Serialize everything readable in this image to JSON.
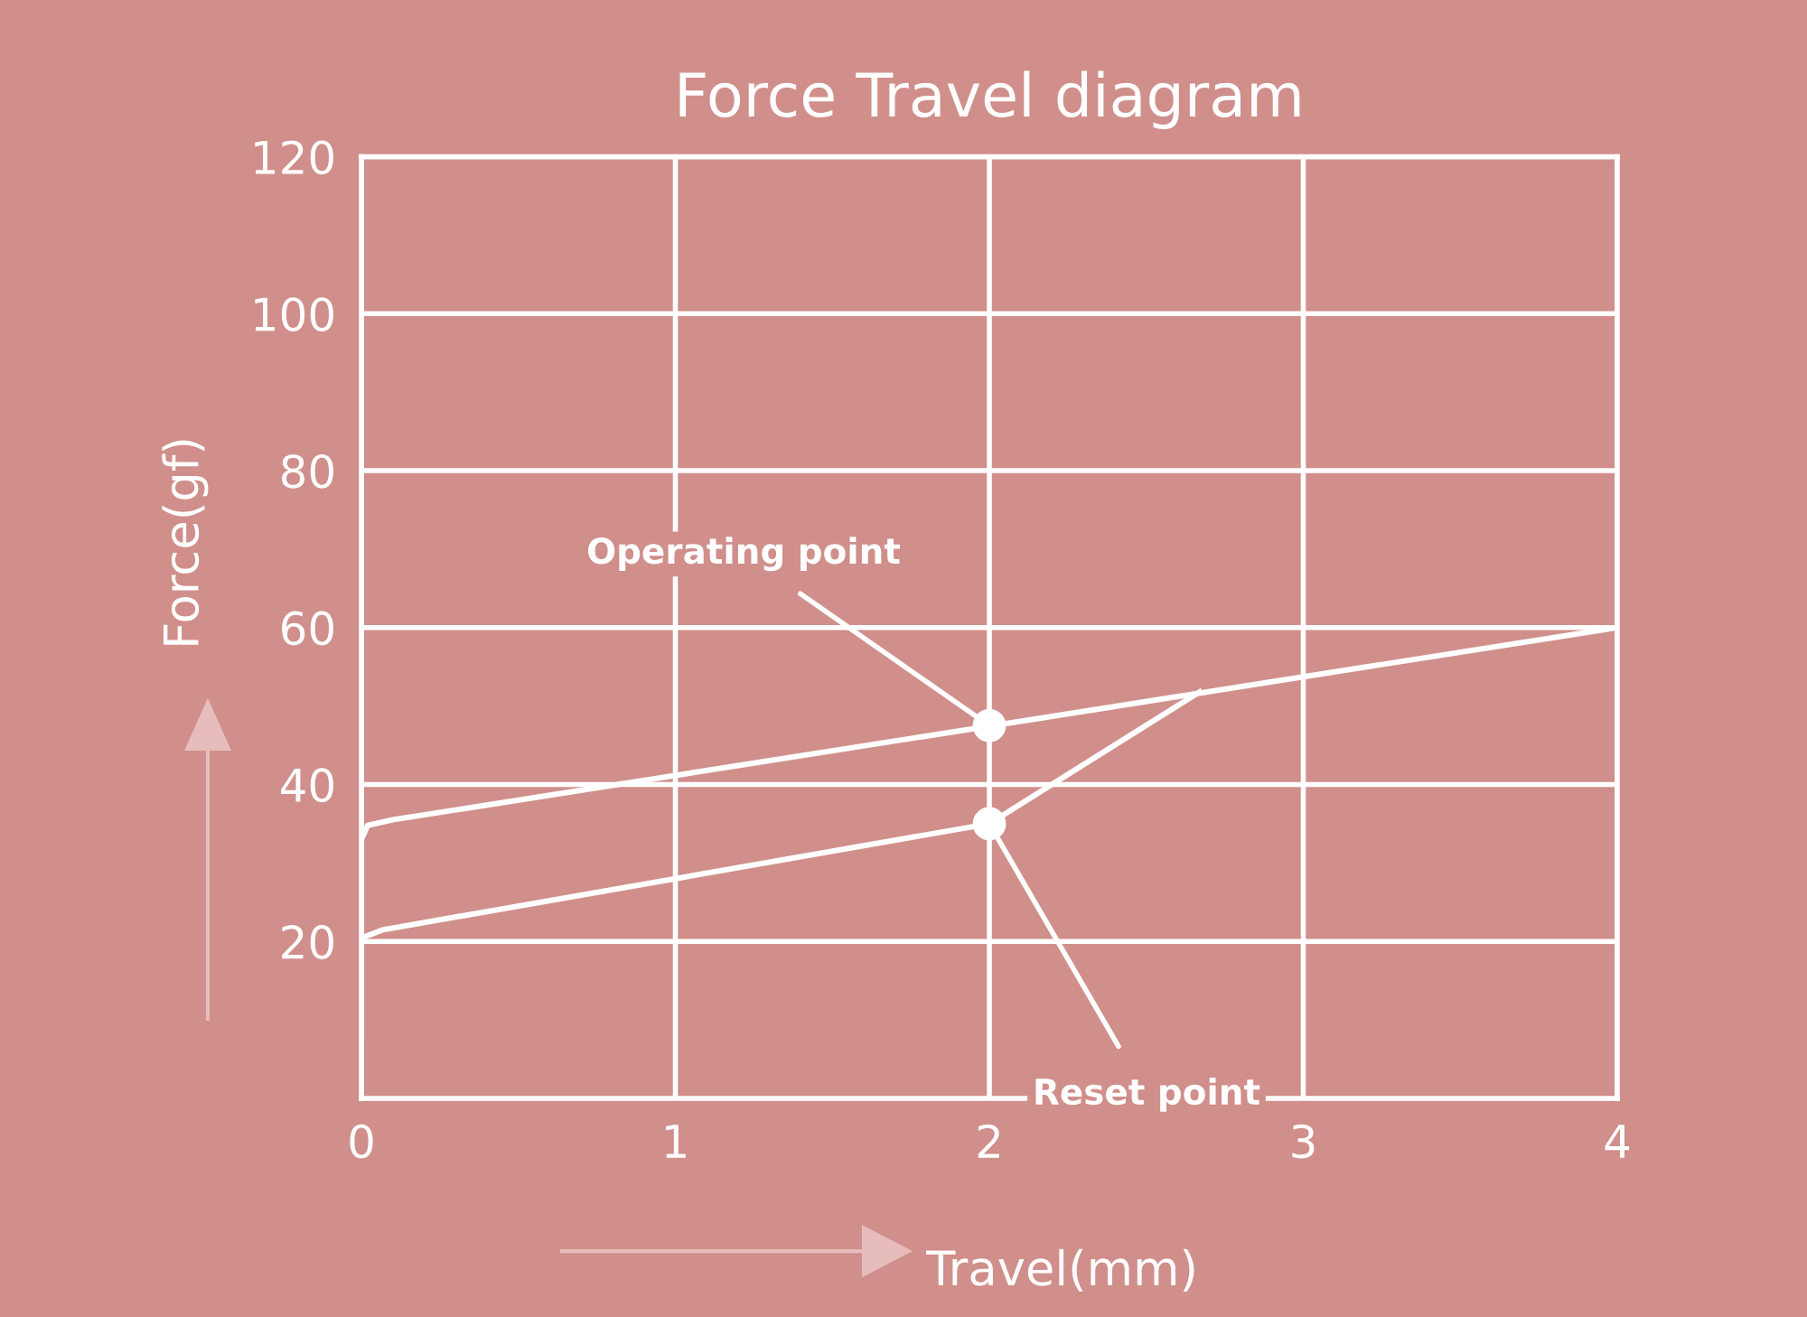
{
  "chart_data": {
    "type": "line",
    "title": "Force Travel diagram",
    "xlabel": "Travel(mm)",
    "ylabel": "Force(gf)",
    "xlim": [
      0,
      4
    ],
    "xticks": [
      0,
      1,
      2,
      3,
      4
    ],
    "ylim": [
      0,
      120
    ],
    "yticks": [
      20,
      40,
      60,
      80,
      100,
      120
    ],
    "grid": true,
    "series": [
      {
        "color": "#ffffff",
        "x": [
          0,
          0,
          0.02,
          0.1,
          4
        ],
        "values": [
          8,
          33,
          34.8,
          35.5,
          60
        ]
      },
      {
        "color": "#ffffff",
        "x": [
          2.67,
          2,
          0.07,
          0.01,
          0
        ],
        "values": [
          51.8,
          35,
          21.5,
          20.6,
          20
        ]
      },
      {
        "type": "scatter",
        "color": "#ffffff",
        "marker": "circle",
        "x": [
          2,
          2
        ],
        "values": [
          47.5,
          35
        ]
      }
    ],
    "annotations": [
      {
        "text": "Operating point",
        "x": 2,
        "y": 47.5
      },
      {
        "text": "Reset point",
        "x": 2,
        "y": 35
      }
    ]
  }
}
